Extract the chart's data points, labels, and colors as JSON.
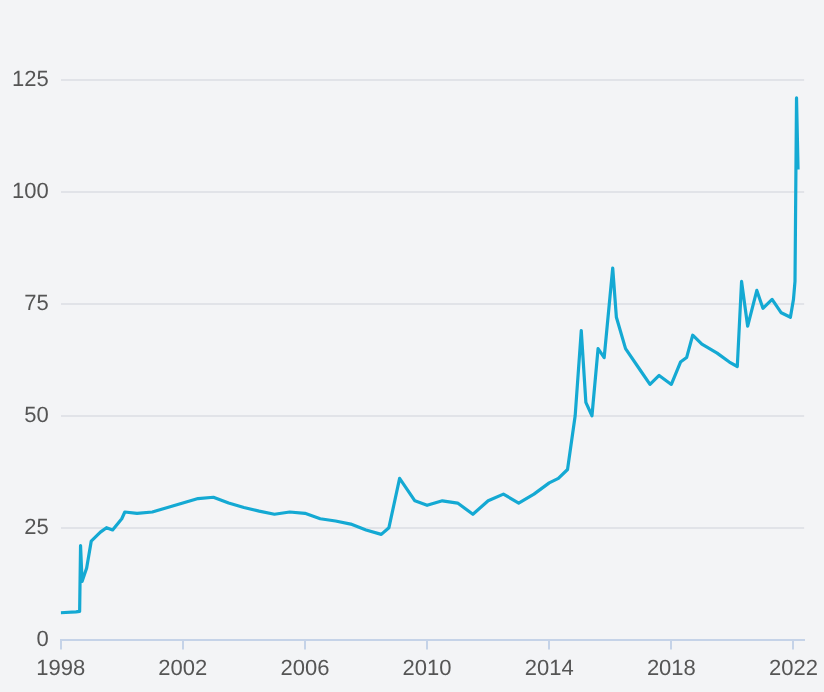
{
  "chart_data": {
    "type": "line",
    "x": [
      1998.0,
      1998.5,
      1998.62,
      1998.65,
      1998.7,
      1998.85,
      1999.0,
      1999.3,
      1999.5,
      1999.7,
      2000.0,
      2000.1,
      2000.5,
      2001.0,
      2001.5,
      2002.0,
      2002.5,
      2003.0,
      2003.5,
      2004.0,
      2004.5,
      2005.0,
      2005.5,
      2006.0,
      2006.5,
      2007.0,
      2007.5,
      2008.0,
      2008.5,
      2008.75,
      2009.1,
      2009.3,
      2009.6,
      2010.0,
      2010.5,
      2011.0,
      2011.5,
      2012.0,
      2012.5,
      2013.0,
      2013.5,
      2014.0,
      2014.3,
      2014.6,
      2014.85,
      2015.05,
      2015.2,
      2015.4,
      2015.6,
      2015.8,
      2016.08,
      2016.2,
      2016.5,
      2017.0,
      2017.3,
      2017.6,
      2018.0,
      2018.3,
      2018.5,
      2018.7,
      2019.0,
      2019.5,
      2019.9,
      2020.16,
      2020.3,
      2020.5,
      2020.8,
      2021.0,
      2021.3,
      2021.6,
      2021.9,
      2022.0,
      2022.05,
      2022.1,
      2022.15
    ],
    "series": [
      {
        "color": "#14a9d3",
        "values": [
          6,
          6.2,
          6.3,
          21,
          13,
          16,
          22,
          24,
          25,
          24.5,
          27,
          28.5,
          28.2,
          28.5,
          29.5,
          30.5,
          31.5,
          31.8,
          30.5,
          29.5,
          28.7,
          28,
          28.5,
          28.2,
          27,
          26.5,
          25.8,
          24.5,
          23.5,
          25,
          36,
          34,
          31,
          30,
          31,
          30.5,
          28,
          31,
          32.5,
          30.5,
          32.5,
          35,
          36,
          38,
          50,
          69,
          53,
          50,
          65,
          63,
          83,
          72,
          65,
          60,
          57,
          59,
          57,
          62,
          63,
          68,
          66,
          64,
          62,
          61,
          80,
          70,
          78,
          74,
          76,
          73,
          72,
          76,
          80,
          121,
          105
        ]
      }
    ],
    "xlim": [
      1998,
      2022.35
    ],
    "xticks": [
      1998,
      2002,
      2006,
      2010,
      2014,
      2018,
      2022
    ],
    "ylim": [
      0,
      125
    ],
    "yticks": [
      0,
      25,
      50,
      75,
      100,
      125
    ],
    "grid": "y",
    "legend": false,
    "marker": "none",
    "line_style": "solid"
  }
}
